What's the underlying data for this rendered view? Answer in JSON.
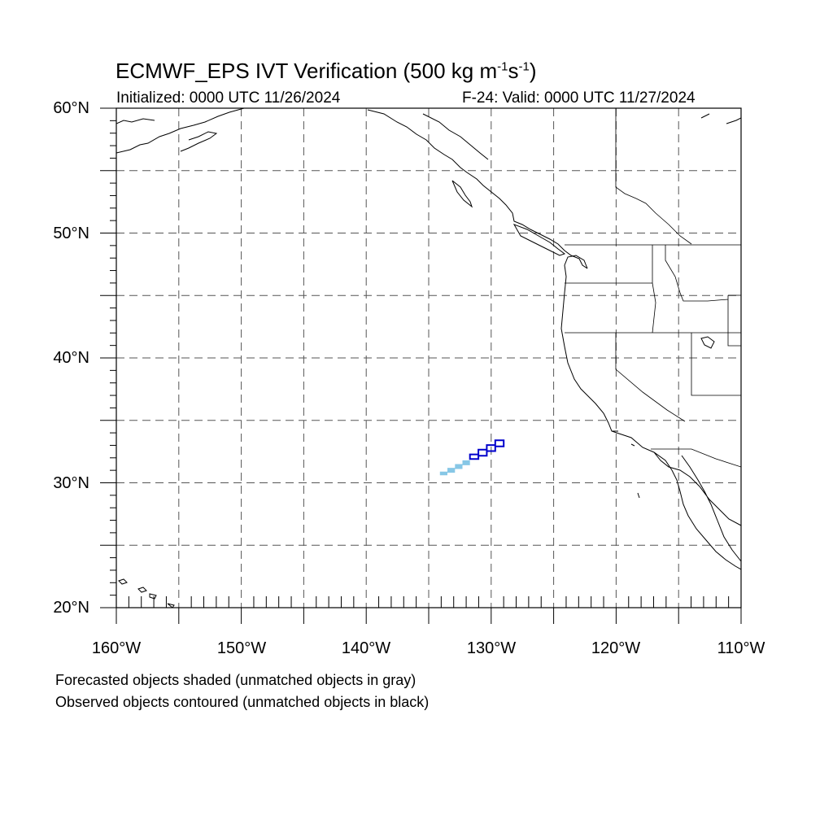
{
  "header": {
    "title_text": "ECMWF_EPS IVT Verification (500 kg m",
    "title_exp1": "-1",
    "title_mid": "s",
    "title_exp2": "-1",
    "title_end": ")",
    "initialized": "Initialized: 0000 UTC 11/26/2024",
    "valid": "F-24: Valid: 0000 UTC 11/27/2024"
  },
  "axes": {
    "lat_labels": [
      "60°N",
      "50°N",
      "40°N",
      "30°N",
      "20°N"
    ],
    "lon_labels": [
      "160°W",
      "150°W",
      "140°W",
      "130°W",
      "120°W",
      "110°W"
    ],
    "lat_range": [
      20,
      60
    ],
    "lon_range": [
      -160,
      -110
    ],
    "gridlines": "dashed every 5 degrees"
  },
  "notes": {
    "forecast": "Forecasted objects shaded (unmatched objects in gray)",
    "observed": "Observed objects contoured (unmatched objects in black)"
  },
  "colors": {
    "forecast_object": "#87c7e6",
    "observed_object": "#0000cc",
    "coastline": "#000000",
    "grid": "#555555"
  },
  "map_data": {
    "forecast_object": {
      "style": "shaded",
      "matched": true,
      "lon_range": [
        -134.1,
        -131.7
      ],
      "lat_range": [
        30.6,
        31.8
      ]
    },
    "observed_object": {
      "style": "contoured",
      "matched": true,
      "lon_range": [
        -131.7,
        -129.0
      ],
      "lat_range": [
        31.9,
        33.4
      ]
    }
  }
}
